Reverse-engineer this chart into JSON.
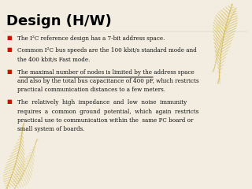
{
  "title": "Design (H/W)",
  "background_color": "#f2ede0",
  "title_color": "#000000",
  "title_fontsize": 13,
  "bullet_color": "#cc1100",
  "text_color": "#111111",
  "text_fontsize": 5.2,
  "bullets": [
    {
      "lines": [
        "The I²C reference design has a 7-bit address space."
      ],
      "underline_line": -1
    },
    {
      "lines": [
        "Common I²C bus speeds are the 100 kbit/s standard mode and",
        "the 400 kbit/s Fast mode."
      ],
      "underline_line": -1
    },
    {
      "lines": [
        "The maximal number of nodes is limited by the address space",
        "and also by the total bus capacitance of 400 pF, which restricts",
        "practical communication distances to a few meters."
      ],
      "underline_line": 0
    },
    {
      "lines": [
        "The  relatively  high  impedance  and  low  noise  immunity",
        "requires  a  common  ground  potential,  which  again  restricts",
        "practical use to communication within the  same PC board or",
        "small system of boards."
      ],
      "underline_line": -1
    }
  ],
  "feather_color": "#d4b84a",
  "feather_alpha": 0.75
}
